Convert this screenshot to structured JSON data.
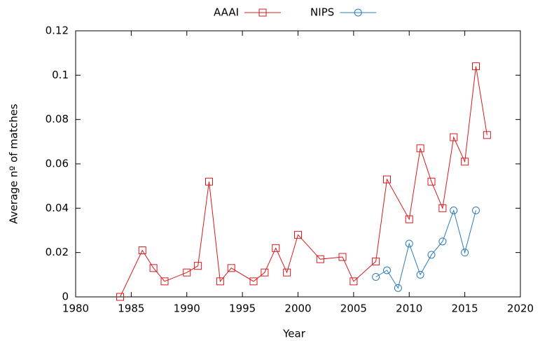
{
  "chart_data": {
    "type": "line",
    "xlabel": "Year",
    "ylabel": "Average nº of matches",
    "xlim": [
      1980,
      2020
    ],
    "xticks": [
      1980,
      1985,
      1990,
      1995,
      2000,
      2005,
      2010,
      2015,
      2020
    ],
    "ylim": [
      0,
      0.12
    ],
    "yticks": [
      0,
      0.02,
      0.04,
      0.06,
      0.08,
      0.1,
      0.12
    ],
    "legend": "top",
    "series": [
      {
        "name": "AAAI",
        "color": "#d7191c",
        "marker": "square",
        "x": [
          1984,
          1986,
          1987,
          1988,
          1990,
          1991,
          1992,
          1993,
          1994,
          1996,
          1997,
          1998,
          1999,
          2000,
          2002,
          2004,
          2005,
          2007,
          2008,
          2010,
          2011,
          2012,
          2013,
          2014,
          2015,
          2016,
          2017
        ],
        "values": [
          0.0,
          0.021,
          0.013,
          0.007,
          0.011,
          0.014,
          0.052,
          0.007,
          0.013,
          0.007,
          0.011,
          0.022,
          0.011,
          0.028,
          0.017,
          0.018,
          0.007,
          0.016,
          0.053,
          0.035,
          0.067,
          0.052,
          0.04,
          0.072,
          0.061,
          0.104,
          0.073
        ]
      },
      {
        "name": "NIPS",
        "color": "#2c7bb6",
        "marker": "circle",
        "x": [
          2007,
          2008,
          2009,
          2010,
          2011,
          2012,
          2013,
          2014,
          2015,
          2016
        ],
        "values": [
          0.009,
          0.012,
          0.004,
          0.024,
          0.01,
          0.019,
          0.025,
          0.039,
          0.02,
          0.039
        ]
      }
    ]
  }
}
